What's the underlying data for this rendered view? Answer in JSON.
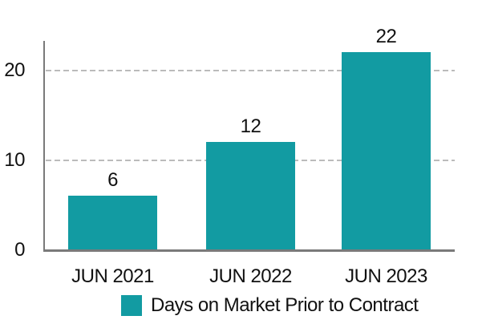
{
  "chart_data": {
    "type": "bar",
    "categories": [
      "JUN 2021",
      "JUN 2022",
      "JUN 2023"
    ],
    "values": [
      6,
      12,
      22
    ],
    "series_name": "Days on Market Prior to Contract",
    "title": "",
    "xlabel": "",
    "ylabel": "",
    "ylim": [
      0,
      23
    ],
    "yticks": [
      0,
      10,
      20
    ],
    "grid": "horizontal-dashed",
    "legend_position": "bottom",
    "value_labels_shown": true
  },
  "legend": {
    "label": "Days on Market Prior to Contract",
    "swatch_color": "#129BA2"
  },
  "colors": {
    "bar": "#129BA2",
    "axis_line": "#7a7a7a",
    "gridline": "#bbbbbb",
    "text": "#111111",
    "background": "#ffffff"
  }
}
